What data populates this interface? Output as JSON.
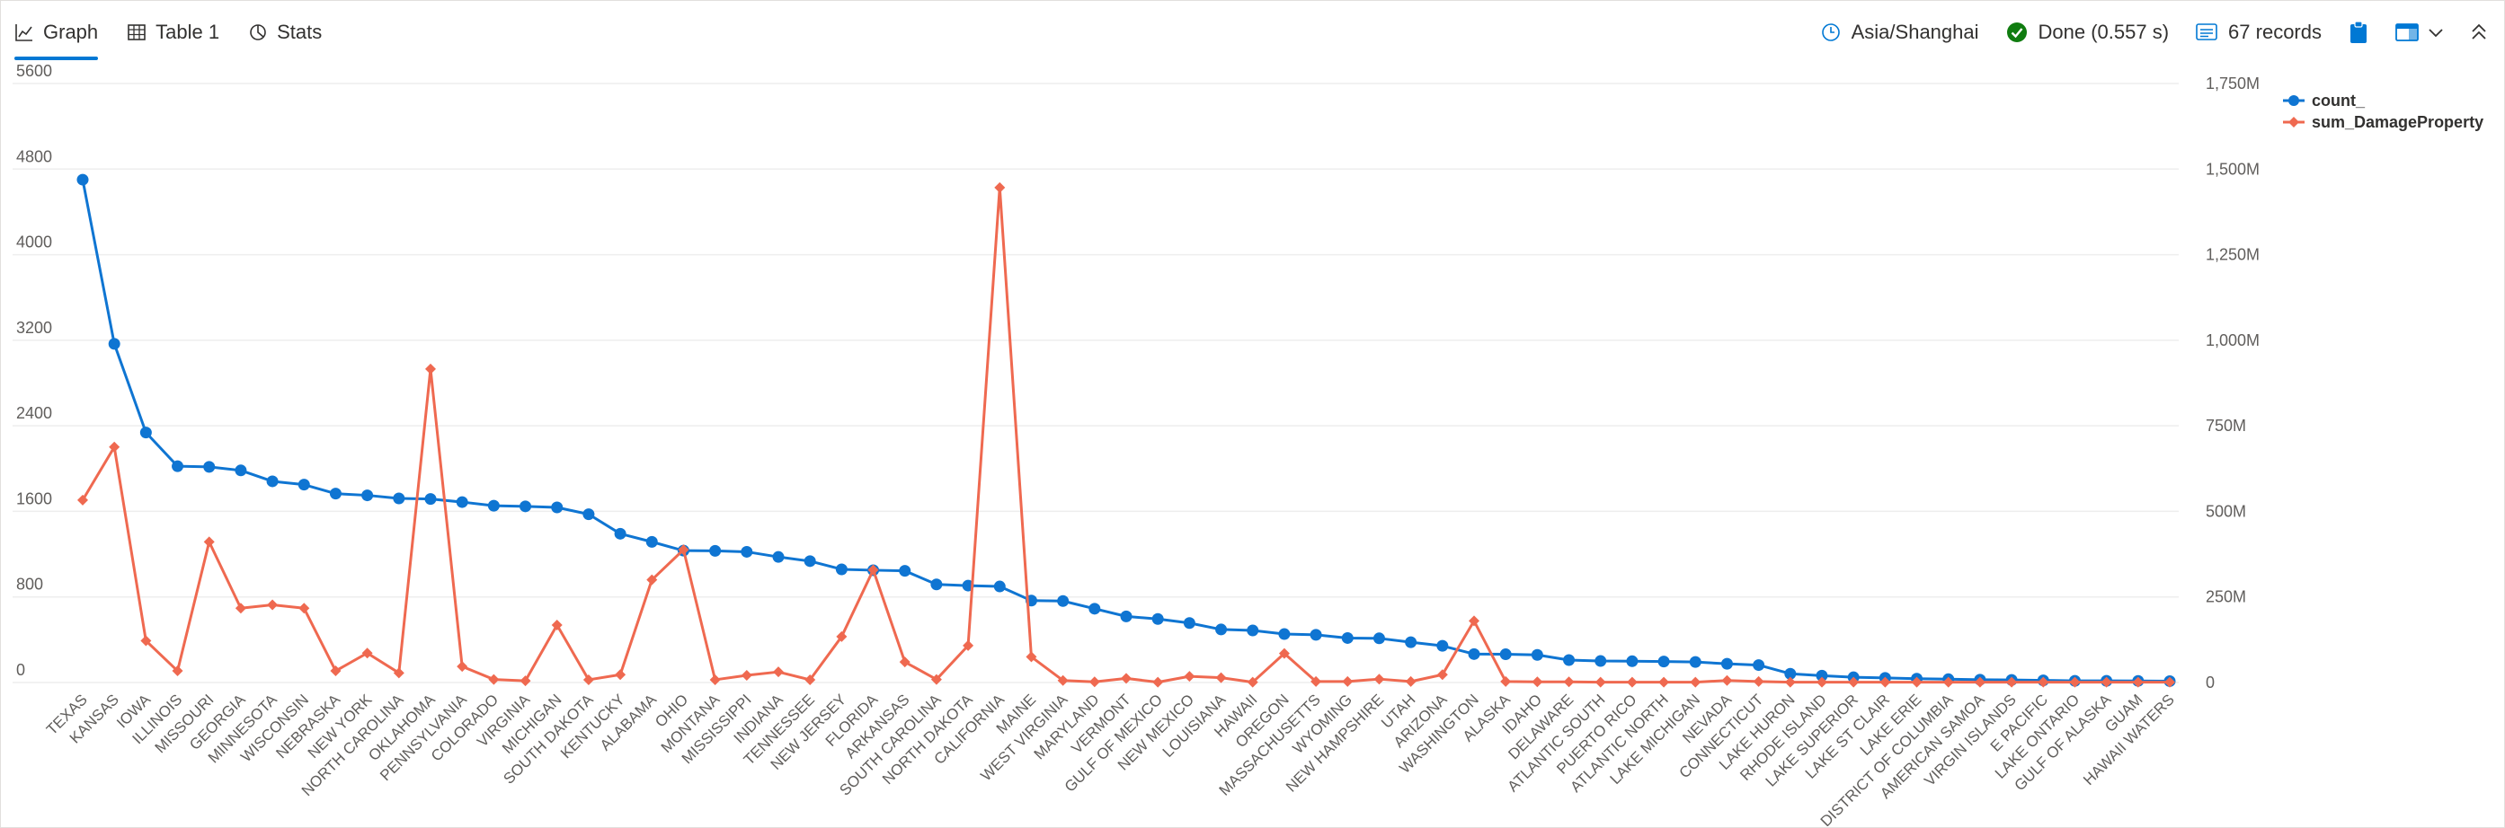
{
  "tabs": [
    {
      "label": "Graph",
      "icon": "line-chart-icon"
    },
    {
      "label": "Table 1",
      "icon": "table-icon"
    },
    {
      "label": "Stats",
      "icon": "stats-icon"
    }
  ],
  "status": {
    "timezone": "Asia/Shanghai",
    "done": "Done (0.557 s)",
    "records": "67 records"
  },
  "colors": {
    "count": "#0f75d2",
    "damage": "#ef6950",
    "grid": "#eeeeee"
  },
  "chart_data": {
    "type": "line",
    "title": "",
    "legend_placement": "top-right",
    "grid": true,
    "categories": [
      "TEXAS",
      "KANSAS",
      "IOWA",
      "ILLINOIS",
      "MISSOURI",
      "GEORGIA",
      "MINNESOTA",
      "WISCONSIN",
      "NEBRASKA",
      "NEW YORK",
      "NORTH CAROLINA",
      "OKLAHOMA",
      "PENNSYLVANIA",
      "COLORADO",
      "VIRGINIA",
      "MICHIGAN",
      "SOUTH DAKOTA",
      "KENTUCKY",
      "ALABAMA",
      "OHIO",
      "MONTANA",
      "MISSISSIPPI",
      "INDIANA",
      "TENNESSEE",
      "NEW JERSEY",
      "FLORIDA",
      "ARKANSAS",
      "SOUTH CAROLINA",
      "NORTH DAKOTA",
      "CALIFORNIA",
      "MAINE",
      "WEST VIRGINIA",
      "MARYLAND",
      "VERMONT",
      "GULF OF MEXICO",
      "NEW MEXICO",
      "LOUISIANA",
      "HAWAII",
      "OREGON",
      "MASSACHUSETTS",
      "WYOMING",
      "NEW HAMPSHIRE",
      "UTAH",
      "ARIZONA",
      "WASHINGTON",
      "ALASKA",
      "IDAHO",
      "DELAWARE",
      "ATLANTIC SOUTH",
      "PUERTO RICO",
      "ATLANTIC NORTH",
      "LAKE MICHIGAN",
      "NEVADA",
      "CONNECTICUT",
      "LAKE HURON",
      "RHODE ISLAND",
      "LAKE SUPERIOR",
      "LAKE ST CLAIR",
      "LAKE ERIE",
      "DISTRICT OF COLUMBIA",
      "AMERICAN SAMOA",
      "VIRGIN ISLANDS",
      "E PACIFIC",
      "LAKE ONTARIO",
      "GULF OF ALASKA",
      "GUAM",
      "HAWAII WATERS"
    ],
    "y_left": {
      "min": 0,
      "max": 5600,
      "ticks": [
        "0",
        "800",
        "1600",
        "2400",
        "3200",
        "4000",
        "4800",
        "5600"
      ]
    },
    "y_right": {
      "min": 0,
      "max": 1750,
      "ticks": [
        "0",
        "250M",
        "500M",
        "750M",
        "1,000M",
        "1,250M",
        "1,500M",
        "1,750M"
      ]
    },
    "series": [
      {
        "name": "count_",
        "axis": "left",
        "values": [
          4701,
          3166,
          2337,
          2022,
          2016,
          1983,
          1881,
          1850,
          1766,
          1750,
          1721,
          1716,
          1687,
          1653,
          1647,
          1637,
          1573,
          1391,
          1315,
          1233,
          1231,
          1222,
          1174,
          1135,
          1058,
          1050,
          1044,
          917,
          906,
          898,
          766,
          762,
          690,
          618,
          594,
          556,
          496,
          487,
          453,
          446,
          416,
          413,
          377,
          343,
          266,
          264,
          258,
          210,
          201,
          199,
          196,
          192,
          175,
          163,
          82,
          64,
          49,
          43,
          36,
          31,
          26,
          24,
          20,
          16,
          16,
          15,
          13
        ]
      },
      {
        "name": "sum_DamageProperty",
        "axis": "right",
        "unit": "M",
        "values": [
          533,
          688,
          122,
          34,
          411,
          217,
          227,
          217,
          34,
          86,
          28,
          916,
          47,
          9,
          5,
          168,
          8,
          23,
          300,
          388,
          8,
          21,
          31,
          8,
          134,
          329,
          60,
          9,
          108,
          1446,
          75,
          6,
          2,
          12,
          1,
          18,
          14,
          1,
          85,
          3,
          3,
          10,
          3,
          23,
          180,
          3,
          2,
          2,
          1,
          1,
          1,
          1,
          6,
          3,
          1,
          1,
          1,
          1,
          1,
          1,
          1,
          1,
          1,
          1,
          1,
          1,
          1
        ]
      }
    ]
  }
}
